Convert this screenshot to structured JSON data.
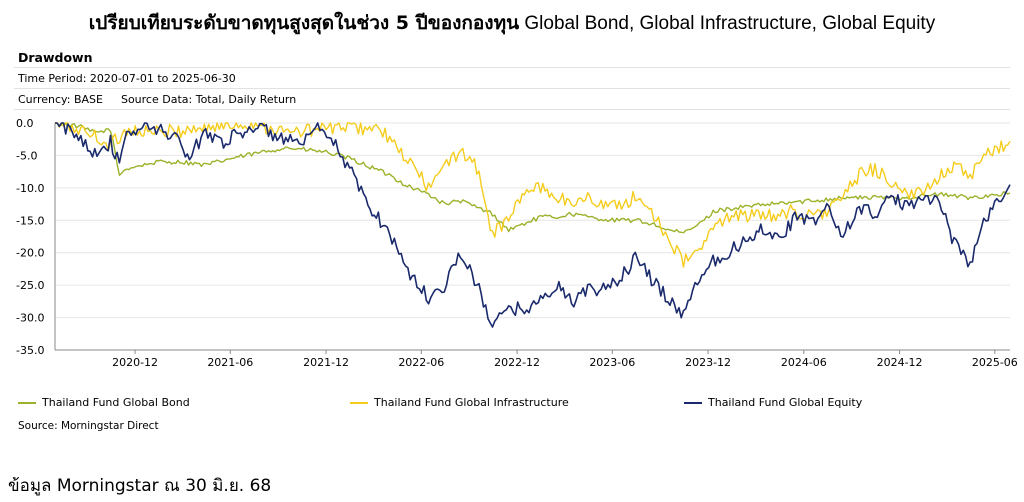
{
  "header": {
    "title_thai": "เปรียบเทียบระดับขาดทุนสูงสุดในช่วง 5 ปีของกองทุน",
    "title_latin": " Global Bond, Global Infrastructure, Global Equity"
  },
  "panel": {
    "title": "Drawdown",
    "time_period": "Time Period: 2020-07-01 to 2025-06-30",
    "currency": "Currency: BASE",
    "source_data": "Source Data: Total, Daily Return",
    "source": "Source: Morningstar Direct"
  },
  "footnote": "ข้อมูล Morningstar ณ 30 มิ.ย. 68",
  "chart_data": {
    "type": "line",
    "title": "Drawdown",
    "xlabel": "",
    "ylabel": "",
    "ylim": [
      -35,
      0
    ],
    "xlim": [
      "2020-07-01",
      "2025-06-30"
    ],
    "yticks": [
      "0.0",
      "-5.0",
      "-10.0",
      "-15.0",
      "-20.0",
      "-25.0",
      "-30.0",
      "-35.0"
    ],
    "xticks": [
      "2020-12",
      "2021-06",
      "2021-12",
      "2022-06",
      "2022-12",
      "2023-06",
      "2023-12",
      "2024-06",
      "2024-12",
      "2025-06"
    ],
    "grid": "horizontal",
    "legend_position": "bottom",
    "series": [
      {
        "name": "Thailand Fund Global Bond",
        "color": "#9bb22a",
        "points": [
          [
            "2020-07-01",
            0
          ],
          [
            "2020-08-15",
            -0.5
          ],
          [
            "2020-09-15",
            -1.5
          ],
          [
            "2020-10-15",
            -1
          ],
          [
            "2020-11-01",
            -8
          ],
          [
            "2020-11-15",
            -7
          ],
          [
            "2020-12-15",
            -6.5
          ],
          [
            "2021-01-15",
            -6
          ],
          [
            "2021-03-01",
            -6
          ],
          [
            "2021-04-15",
            -6.5
          ],
          [
            "2021-06-01",
            -5.5
          ],
          [
            "2021-08-01",
            -4.5
          ],
          [
            "2021-09-15",
            -3.8
          ],
          [
            "2021-11-01",
            -4.2
          ],
          [
            "2021-12-01",
            -4.5
          ],
          [
            "2022-01-15",
            -5.5
          ],
          [
            "2022-02-15",
            -6.5
          ],
          [
            "2022-04-01",
            -8
          ],
          [
            "2022-05-01",
            -9.5
          ],
          [
            "2022-06-15",
            -11
          ],
          [
            "2022-07-15",
            -12.5
          ],
          [
            "2022-08-15",
            -12
          ],
          [
            "2022-09-15",
            -13
          ],
          [
            "2022-10-15",
            -14
          ],
          [
            "2022-11-15",
            -16.5
          ],
          [
            "2022-12-15",
            -15.5
          ],
          [
            "2023-01-15",
            -14.5
          ],
          [
            "2023-02-15",
            -14.5
          ],
          [
            "2023-03-15",
            -14
          ],
          [
            "2023-04-15",
            -14.5
          ],
          [
            "2023-06-01",
            -15
          ],
          [
            "2023-07-15",
            -15
          ],
          [
            "2023-08-15",
            -15.5
          ],
          [
            "2023-09-15",
            -16.5
          ],
          [
            "2023-10-15",
            -17
          ],
          [
            "2023-11-15",
            -15.5
          ],
          [
            "2023-12-15",
            -13.5
          ],
          [
            "2024-02-01",
            -13
          ],
          [
            "2024-04-01",
            -12.5
          ],
          [
            "2024-06-15",
            -12
          ],
          [
            "2024-08-15",
            -11.5
          ],
          [
            "2024-10-15",
            -11.5
          ],
          [
            "2024-12-15",
            -11.5
          ],
          [
            "2025-02-15",
            -11
          ],
          [
            "2025-04-15",
            -11.5
          ],
          [
            "2025-06-30",
            -10.8
          ]
        ]
      },
      {
        "name": "Thailand Fund Global Infrastructure",
        "color": "#f5cc1c",
        "points": [
          [
            "2020-07-01",
            0
          ],
          [
            "2020-08-15",
            -1
          ],
          [
            "2020-09-15",
            -2
          ],
          [
            "2020-10-15",
            -3.5
          ],
          [
            "2020-11-15",
            -1
          ],
          [
            "2021-01-15",
            -1.5
          ],
          [
            "2021-03-15",
            -1
          ],
          [
            "2021-05-15",
            -0.5
          ],
          [
            "2021-07-15",
            0
          ],
          [
            "2021-09-15",
            -1.5
          ],
          [
            "2021-11-15",
            -1
          ],
          [
            "2022-01-15",
            -0.5
          ],
          [
            "2022-03-15",
            -1
          ],
          [
            "2022-04-15",
            -4
          ],
          [
            "2022-05-15",
            -6.5
          ],
          [
            "2022-06-15",
            -10
          ],
          [
            "2022-07-15",
            -7
          ],
          [
            "2022-08-15",
            -4
          ],
          [
            "2022-09-15",
            -7
          ],
          [
            "2022-10-15",
            -17
          ],
          [
            "2022-11-15",
            -15
          ],
          [
            "2022-12-15",
            -10.5
          ],
          [
            "2023-01-15",
            -10
          ],
          [
            "2023-03-15",
            -12.5
          ],
          [
            "2023-04-15",
            -11.5
          ],
          [
            "2023-06-01",
            -13
          ],
          [
            "2023-07-15",
            -11.5
          ],
          [
            "2023-08-15",
            -13.5
          ],
          [
            "2023-09-15",
            -17.5
          ],
          [
            "2023-10-15",
            -21.5
          ],
          [
            "2023-11-15",
            -19.5
          ],
          [
            "2023-12-15",
            -16
          ],
          [
            "2024-01-15",
            -14
          ],
          [
            "2024-03-15",
            -14.5
          ],
          [
            "2024-05-15",
            -13.5
          ],
          [
            "2024-06-15",
            -14.5
          ],
          [
            "2024-07-15",
            -13.5
          ],
          [
            "2024-08-15",
            -11.5
          ],
          [
            "2024-09-15",
            -8
          ],
          [
            "2024-10-15",
            -7
          ],
          [
            "2024-11-15",
            -9
          ],
          [
            "2024-12-15",
            -11.5
          ],
          [
            "2025-01-15",
            -10.5
          ],
          [
            "2025-02-15",
            -8
          ],
          [
            "2025-03-15",
            -6.5
          ],
          [
            "2025-04-15",
            -8.5
          ],
          [
            "2025-05-15",
            -5
          ],
          [
            "2025-06-30",
            -2.8
          ]
        ]
      },
      {
        "name": "Thailand Fund Global Equity",
        "color": "#1a2a6c",
        "points": [
          [
            "2020-07-01",
            0
          ],
          [
            "2020-08-15",
            -2
          ],
          [
            "2020-09-15",
            -4.5
          ],
          [
            "2020-10-15",
            -3
          ],
          [
            "2020-11-01",
            -6.5
          ],
          [
            "2020-11-15",
            -2
          ],
          [
            "2020-12-15",
            -0.5
          ],
          [
            "2021-01-15",
            -1
          ],
          [
            "2021-02-15",
            -2
          ],
          [
            "2021-03-15",
            -5.5
          ],
          [
            "2021-04-15",
            -1
          ],
          [
            "2021-05-15",
            -3
          ],
          [
            "2021-07-15",
            -0.5
          ],
          [
            "2021-09-15",
            -2.5
          ],
          [
            "2021-10-15",
            -3.5
          ],
          [
            "2021-11-15",
            -1
          ],
          [
            "2021-12-15",
            -3
          ],
          [
            "2022-01-15",
            -7
          ],
          [
            "2022-02-15",
            -12
          ],
          [
            "2022-03-15",
            -15
          ],
          [
            "2022-04-15",
            -19
          ],
          [
            "2022-05-15",
            -24
          ],
          [
            "2022-06-15",
            -27
          ],
          [
            "2022-07-15",
            -25
          ],
          [
            "2022-08-15",
            -20
          ],
          [
            "2022-09-15",
            -25
          ],
          [
            "2022-10-15",
            -31
          ],
          [
            "2022-11-15",
            -29
          ],
          [
            "2022-12-15",
            -28.5
          ],
          [
            "2023-01-15",
            -27.5
          ],
          [
            "2023-02-15",
            -25
          ],
          [
            "2023-03-15",
            -27.5
          ],
          [
            "2023-04-15",
            -26
          ],
          [
            "2023-05-15",
            -25.5
          ],
          [
            "2023-06-15",
            -24
          ],
          [
            "2023-07-15",
            -21
          ],
          [
            "2023-08-15",
            -24
          ],
          [
            "2023-09-15",
            -27
          ],
          [
            "2023-10-15",
            -29.5
          ],
          [
            "2023-11-15",
            -23.5
          ],
          [
            "2023-12-15",
            -21
          ],
          [
            "2024-01-15",
            -19.5
          ],
          [
            "2024-02-15",
            -18
          ],
          [
            "2024-03-15",
            -16
          ],
          [
            "2024-04-15",
            -18
          ],
          [
            "2024-05-15",
            -14.5
          ],
          [
            "2024-06-15",
            -15.5
          ],
          [
            "2024-07-15",
            -13
          ],
          [
            "2024-08-15",
            -17.5
          ],
          [
            "2024-09-15",
            -13
          ],
          [
            "2024-10-15",
            -14
          ],
          [
            "2024-11-15",
            -11.5
          ],
          [
            "2024-12-15",
            -13
          ],
          [
            "2025-01-15",
            -11
          ],
          [
            "2025-02-15",
            -12
          ],
          [
            "2025-03-15",
            -18.5
          ],
          [
            "2025-04-15",
            -21.5
          ],
          [
            "2025-05-15",
            -14.5
          ],
          [
            "2025-06-30",
            -9.5
          ]
        ]
      }
    ]
  }
}
